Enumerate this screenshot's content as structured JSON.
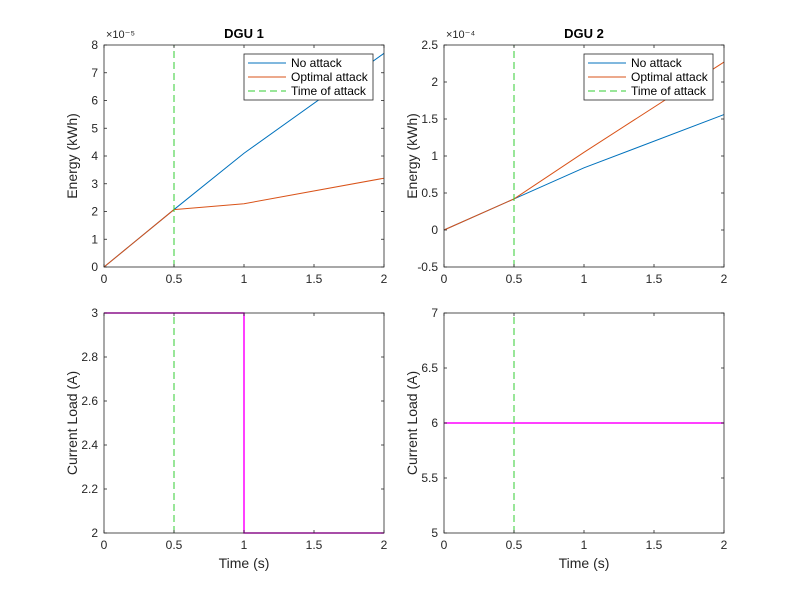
{
  "chart_data": [
    {
      "type": "line",
      "title": "DGU 1",
      "xlabel": "",
      "ylabel": "Energy (kWh)",
      "xlim": [
        0,
        2
      ],
      "ylim": [
        0,
        8
      ],
      "x_ticks": [
        0,
        0.5,
        1,
        1.5,
        2
      ],
      "x_tick_labels": [
        "0",
        "0.5",
        "1",
        "1.5",
        "2"
      ],
      "y_ticks": [
        0,
        1,
        2,
        3,
        4,
        5,
        6,
        7,
        8
      ],
      "y_tick_labels": [
        "0",
        "1",
        "2",
        "3",
        "4",
        "5",
        "6",
        "7",
        "8"
      ],
      "y_exponent_label": "×10⁻⁵",
      "legend_position": "top-right",
      "series": [
        {
          "name": "No attack",
          "color": "#0072BD",
          "style": "solid",
          "x": [
            0,
            0.5,
            1,
            2
          ],
          "y": [
            0,
            2.07,
            4.1,
            7.7
          ]
        },
        {
          "name": "Optimal attack",
          "color": "#D95319",
          "style": "solid",
          "x": [
            0,
            0.5,
            0.51,
            1,
            2
          ],
          "y": [
            0,
            2.07,
            2.07,
            2.28,
            3.2
          ]
        },
        {
          "name": "Time of attack",
          "color": "#33CC33",
          "style": "dashed",
          "x": [
            0.5,
            0.5
          ],
          "y": [
            0,
            8
          ]
        }
      ]
    },
    {
      "type": "line",
      "title": "DGU 2",
      "xlabel": "",
      "ylabel": "Energy (kWh)",
      "xlim": [
        0,
        2
      ],
      "ylim": [
        -0.5,
        2.5
      ],
      "x_ticks": [
        0,
        0.5,
        1,
        1.5,
        2
      ],
      "x_tick_labels": [
        "0",
        "0.5",
        "1",
        "1.5",
        "2"
      ],
      "y_ticks": [
        -0.5,
        0,
        0.5,
        1,
        1.5,
        2,
        2.5
      ],
      "y_tick_labels": [
        "-0.5",
        "0",
        "0.5",
        "1",
        "1.5",
        "2",
        "2.5"
      ],
      "y_exponent_label": "×10⁻⁴",
      "legend_position": "top-right",
      "series": [
        {
          "name": "No attack",
          "color": "#0072BD",
          "style": "solid",
          "x": [
            0,
            0.5,
            1,
            2
          ],
          "y": [
            0,
            0.42,
            0.84,
            1.56
          ]
        },
        {
          "name": "Optimal attack",
          "color": "#D95319",
          "style": "solid",
          "x": [
            0,
            0.5,
            1,
            2
          ],
          "y": [
            0,
            0.42,
            1.05,
            2.27
          ]
        },
        {
          "name": "Time of attack",
          "color": "#33CC33",
          "style": "dashed",
          "x": [
            0.5,
            0.5
          ],
          "y": [
            -0.5,
            2.5
          ]
        }
      ]
    },
    {
      "type": "line",
      "title": "",
      "xlabel": "Time (s)",
      "ylabel": "Current Load (A)",
      "xlim": [
        0,
        2
      ],
      "ylim": [
        2,
        3
      ],
      "x_ticks": [
        0,
        0.5,
        1,
        1.5,
        2
      ],
      "x_tick_labels": [
        "0",
        "0.5",
        "1",
        "1.5",
        "2"
      ],
      "y_ticks": [
        2,
        2.2,
        2.4,
        2.6,
        2.8,
        3
      ],
      "y_tick_labels": [
        "2",
        "2.2",
        "2.4",
        "2.6",
        "2.8",
        "3"
      ],
      "series": [
        {
          "color": "#FF00FF",
          "style": "solid",
          "x": [
            0,
            1,
            1,
            2
          ],
          "y": [
            3,
            3,
            2,
            2
          ]
        },
        {
          "color": "#33CC33",
          "style": "dashed",
          "x": [
            0.5,
            0.5
          ],
          "y": [
            2,
            3
          ]
        }
      ]
    },
    {
      "type": "line",
      "title": "",
      "xlabel": "Time (s)",
      "ylabel": "Current Load (A)",
      "xlim": [
        0,
        2
      ],
      "ylim": [
        5,
        7
      ],
      "x_ticks": [
        0,
        0.5,
        1,
        1.5,
        2
      ],
      "x_tick_labels": [
        "0",
        "0.5",
        "1",
        "1.5",
        "2"
      ],
      "y_ticks": [
        5,
        5.5,
        6,
        6.5,
        7
      ],
      "y_tick_labels": [
        "5",
        "5.5",
        "6",
        "6.5",
        "7"
      ],
      "series": [
        {
          "color": "#FF00FF",
          "style": "solid",
          "x": [
            0,
            2
          ],
          "y": [
            6,
            6
          ]
        },
        {
          "color": "#33CC33",
          "style": "dashed",
          "x": [
            0.5,
            0.5
          ],
          "y": [
            5,
            7
          ]
        }
      ]
    }
  ]
}
